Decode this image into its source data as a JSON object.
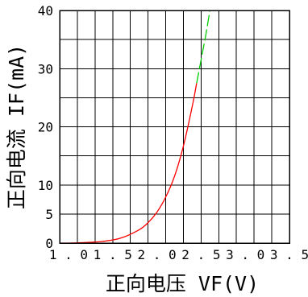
{
  "chart_data": {
    "type": "line",
    "title": "",
    "xlabel": "正向电压 VF(V)",
    "ylabel": "正向电流 IF(mA)",
    "xlim": [
      0.9,
      3.5
    ],
    "ylim": [
      0,
      40
    ],
    "x_ticks": [
      "1.0",
      "1.5",
      "2.0",
      "2.5",
      "3.0",
      "3.5"
    ],
    "y_ticks": [
      "0",
      "5",
      "10",
      "20",
      "30",
      "40"
    ],
    "grid": true,
    "colors": {
      "measured": "#ff0000",
      "extrapolated": "#00cc00"
    },
    "series": [
      {
        "style": "solid",
        "color": "#ff0000",
        "x": [
          0.9,
          1.0,
          1.2,
          1.4,
          1.6,
          1.8,
          1.9,
          2.0,
          2.1,
          2.2,
          2.3,
          2.4,
          2.45
        ],
        "y": [
          0.0,
          0.0,
          0.1,
          0.3,
          0.9,
          2.3,
          3.5,
          5.3,
          7.9,
          11.5,
          16.7,
          23.5,
          27.5
        ]
      },
      {
        "style": "dashed",
        "color": "#00cc00",
        "x": [
          2.45,
          2.5,
          2.55,
          2.6
        ],
        "y": [
          27.5,
          31.5,
          35.5,
          40.0
        ]
      }
    ]
  }
}
